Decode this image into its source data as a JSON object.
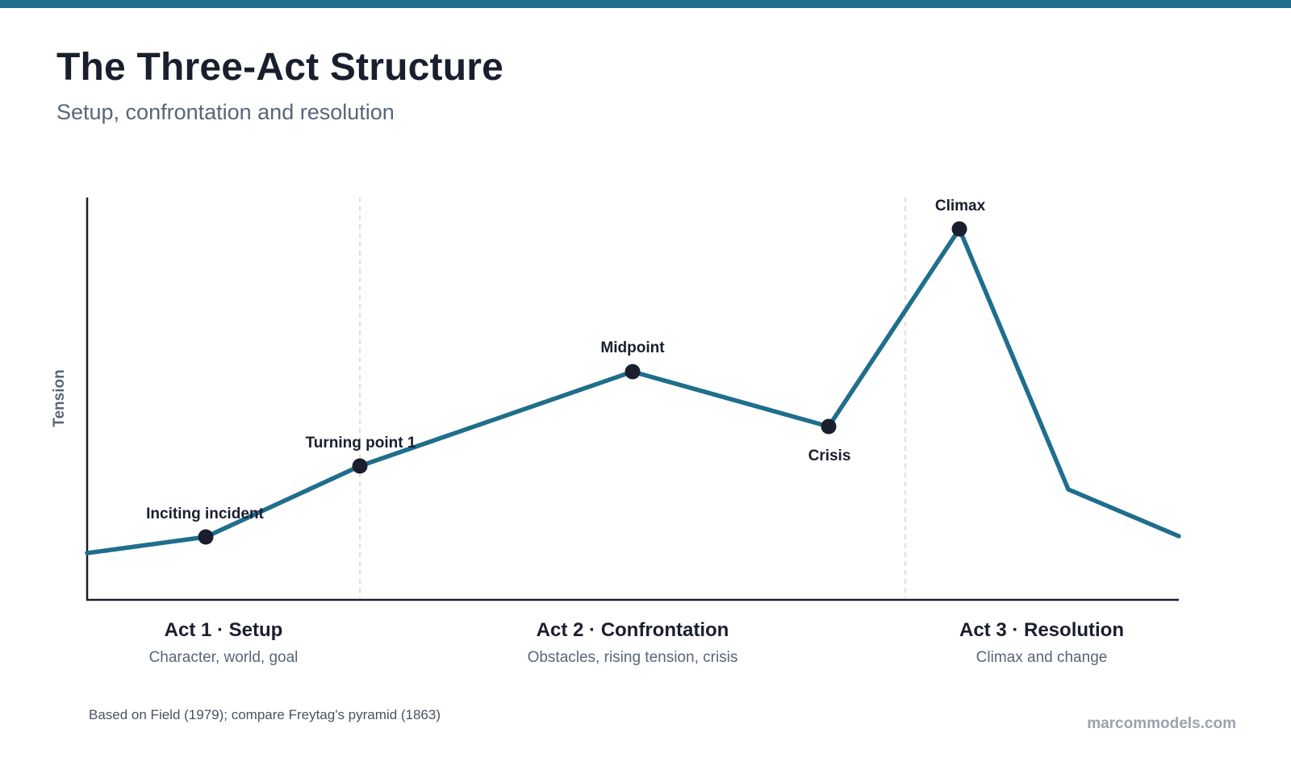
{
  "header": {
    "title": "The Three-Act Structure",
    "subtitle": "Setup, confrontation and resolution"
  },
  "colors": {
    "top_bar": "#1f6e8c",
    "curve": "#1f6e8c",
    "points": "#1a1f2e",
    "axis": "#1a1f2e",
    "divider": "#cfd3d8"
  },
  "diagram": {
    "y_axis_label": "Tension",
    "milestones": [
      {
        "label": "Inciting incident"
      },
      {
        "label": "Turning point 1"
      },
      {
        "label": "Midpoint"
      },
      {
        "label": "Crisis"
      },
      {
        "label": "Climax"
      }
    ],
    "acts": [
      {
        "title": "Act 1 · Setup",
        "description": "Character, world, goal"
      },
      {
        "title": "Act 2 · Confrontation",
        "description": "Obstacles, rising tension, crisis"
      },
      {
        "title": "Act 3 · Resolution",
        "description": "Climax and change"
      }
    ]
  },
  "footer": {
    "source": "Based on Field (1979); compare Freytag's pyramid (1863)",
    "brand": "marcommodels.com"
  }
}
